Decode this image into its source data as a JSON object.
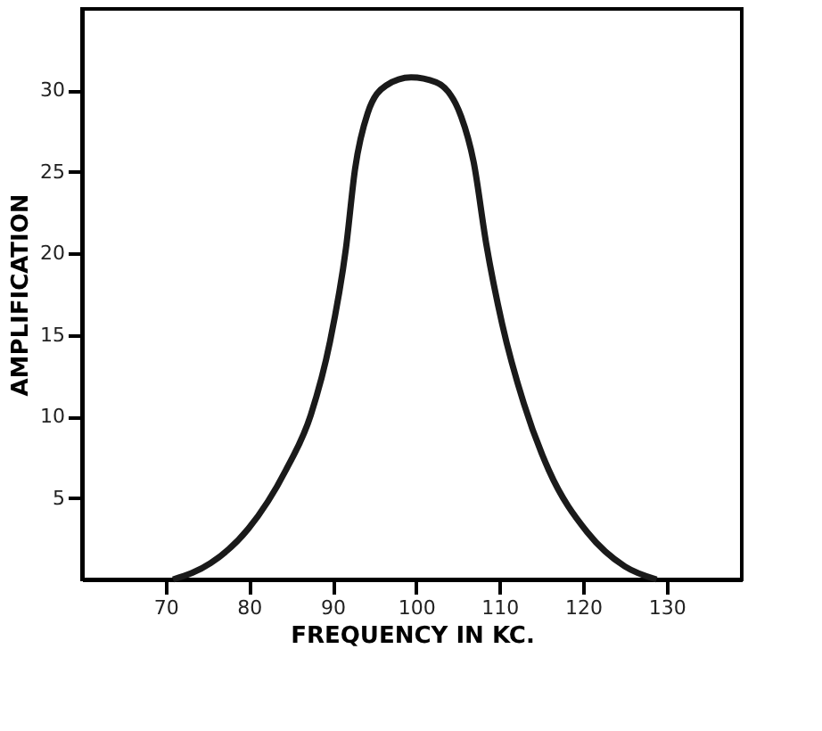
{
  "chart_data": {
    "type": "line",
    "xlabel": "FREQUENCY IN KC.",
    "ylabel": "AMPLIFICATION",
    "x": [
      70.9,
      75.4,
      79.9,
      84.4,
      87.4,
      89.7,
      91.6,
      92.7,
      94.2,
      96.4,
      99.4,
      102.4,
      105.4,
      106.9,
      108.4,
      110.3,
      112.9,
      115.9,
      120.5,
      125,
      128.8
    ],
    "series": [
      {
        "color": "#1a1a1a",
        "values": [
          0,
          1.0,
          3.1,
          6.7,
          10.1,
          14.6,
          20.3,
          25.2,
          28.6,
          30.3,
          30.8,
          30.5,
          28.4,
          25.6,
          20.6,
          15.7,
          10.8,
          6.7,
          2.9,
          0.8,
          0
        ]
      }
    ],
    "xlim": [
      60,
      139
    ],
    "xticks": [
      70,
      80,
      90,
      100,
      110,
      120,
      130
    ],
    "ylim": [
      0,
      35
    ],
    "yticks": [
      5,
      10,
      15,
      20,
      25,
      30
    ],
    "grid": false,
    "marker": "none",
    "line_style": "solid"
  }
}
